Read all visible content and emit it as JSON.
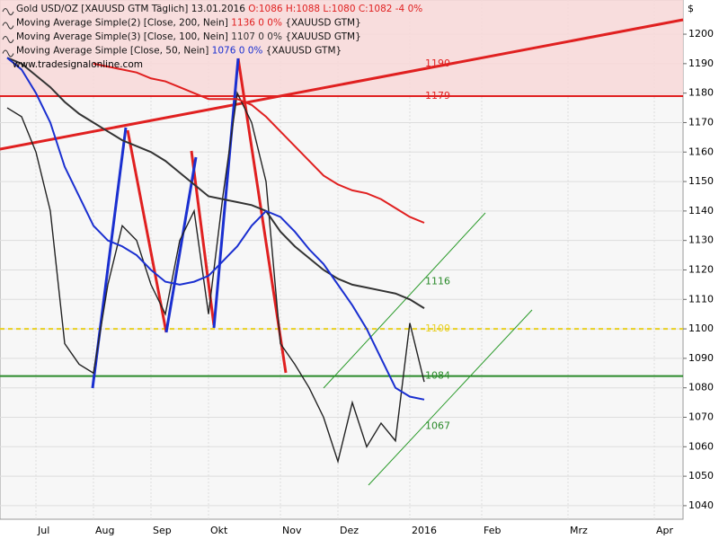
{
  "chart_data": {
    "type": "line",
    "source_site": "www.tradesignalonline.com",
    "currency": "$",
    "ylim": [
      1035.4,
      1211.6
    ],
    "yticks": [
      1040,
      1050,
      1060,
      1070,
      1080,
      1090,
      1100,
      1110,
      1120,
      1130,
      1140,
      1150,
      1160,
      1170,
      1180,
      1190,
      1200
    ],
    "grid": true,
    "categories": [
      null,
      null,
      "Jul",
      null,
      null,
      null,
      "Aug",
      null,
      null,
      null,
      "Sep",
      null,
      null,
      null,
      "Okt",
      null,
      null,
      null,
      null,
      "Nov",
      null,
      null,
      null,
      "Dez",
      null,
      null,
      null,
      null,
      "2016",
      null,
      null,
      null,
      null,
      "Feb",
      null,
      null,
      null,
      null,
      null,
      "Mrz",
      null,
      null,
      null,
      null,
      null,
      "Apr",
      null
    ],
    "series": [
      {
        "name": "Gold USD/OZ [XAUUSD GTM  Täglich]",
        "date": "13.01.2016",
        "info": "O:1086 H:1088 L:1080 C:1082 -4 0%",
        "color": "#222222",
        "info_color": "#e02020",
        "values": [
          1175,
          1172,
          1160,
          1140,
          1095,
          1088,
          1085,
          1115,
          1135,
          1130,
          1115,
          1105,
          1130,
          1140,
          1105,
          1145,
          1180,
          1170,
          1150,
          1095,
          1088,
          1080,
          1070,
          1055,
          1075,
          1060,
          1068,
          1062,
          1102,
          1082,
          null,
          null,
          null,
          null,
          null,
          null,
          null,
          null,
          null,
          null,
          null,
          null,
          null,
          null,
          null,
          null,
          null
        ]
      },
      {
        "name": "Moving Average Simple(2) [Close, 200, Nein]",
        "info": "1136 0 0%",
        "source": "{XAUUSD GTM}",
        "color": "#e02020",
        "values": [
          null,
          null,
          null,
          null,
          null,
          null,
          1190,
          1189,
          1188,
          1187,
          1185,
          1184,
          1182,
          1180,
          1178,
          1178,
          1178,
          1176,
          1172,
          1167,
          1162,
          1157,
          1152,
          1149,
          1147,
          1146,
          1144,
          1141,
          1138,
          1136,
          null,
          null,
          null,
          null,
          null,
          null,
          null,
          null,
          null,
          null,
          null,
          null,
          null,
          null,
          null,
          null,
          null
        ]
      },
      {
        "name": "Moving Average Simple(3) [Close, 100, Nein]",
        "info": "1107 0 0%",
        "source": "{XAUUSD GTM}",
        "color": "#333333",
        "values": [
          1192,
          1190,
          1186,
          1182,
          1177,
          1173,
          1170,
          1167,
          1164,
          1162,
          1160,
          1157,
          1153,
          1149,
          1145,
          1144,
          1143,
          1142,
          1140,
          1133,
          1128,
          1124,
          1120,
          1117,
          1115,
          1114,
          1113,
          1112,
          1110,
          1107,
          null,
          null,
          null,
          null,
          null,
          null,
          null,
          null,
          null,
          null,
          null,
          null,
          null,
          null,
          null,
          null,
          null
        ]
      },
      {
        "name": "Moving Average Simple [Close, 50, Nein]",
        "info": "1076 0 0%",
        "source": "{XAUUSD GTM}",
        "color": "#1a2fd0",
        "values": [
          1192,
          1188,
          1180,
          1170,
          1155,
          1145,
          1135,
          1130,
          1128,
          1125,
          1120,
          1116,
          1115,
          1116,
          1118,
          1123,
          1128,
          1135,
          1140,
          1138,
          1133,
          1127,
          1122,
          1115,
          1108,
          1100,
          1090,
          1080,
          1077,
          1076,
          null,
          null,
          null,
          null,
          null,
          null,
          null,
          null,
          null,
          null,
          null,
          null,
          null,
          null,
          null,
          null,
          null
        ]
      }
    ],
    "levels": [
      {
        "value": 1190,
        "color": "#e02020"
      },
      {
        "value": 1179,
        "color": "#e02020",
        "style": "solid",
        "zone": true
      },
      {
        "value": 1116,
        "color": "#2a8a2a"
      },
      {
        "value": 1100,
        "color": "#e8d020",
        "style": "dashed"
      },
      {
        "value": 1084,
        "color": "#2a8a2a",
        "style": "solid"
      },
      {
        "value": 1067,
        "color": "#2a8a2a"
      }
    ]
  }
}
